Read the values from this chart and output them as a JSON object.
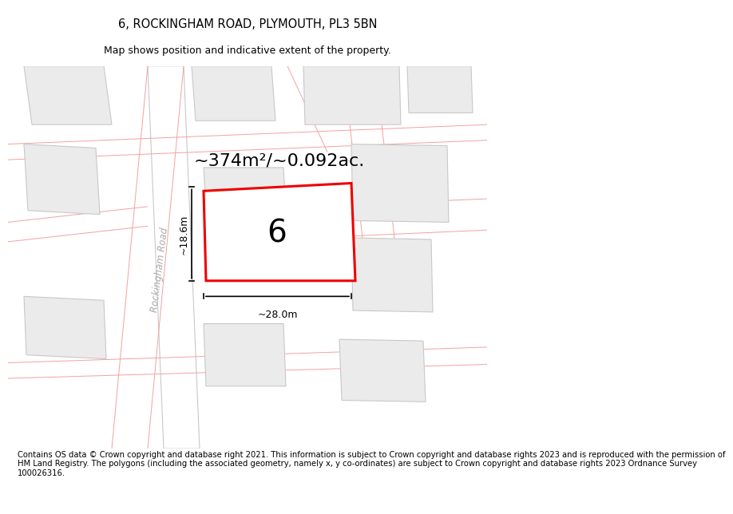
{
  "title": "6, ROCKINGHAM ROAD, PLYMOUTH, PL3 5BN",
  "subtitle": "Map shows position and indicative extent of the property.",
  "footer": "Contains OS data © Crown copyright and database right 2021. This information is subject to Crown copyright and database rights 2023 and is reproduced with the permission of\nHM Land Registry. The polygons (including the associated geometry, namely x, y co-ordinates) are subject to Crown copyright and database rights 2023 Ordnance Survey\n100026316.",
  "bg_color": "#ffffff",
  "map_bg": "#ffffff",
  "building_color": "#ebebeb",
  "building_edge": "#c8c8c8",
  "road_line_color": "#f5a0a0",
  "road_boundary_color": "#c8c8c8",
  "highlight_color": "#ee0000",
  "area_text": "~374m²/~0.092ac.",
  "number_text": "6",
  "width_label": "~28.0m",
  "height_label": "~18.6m",
  "road_label": "Rockingham Road",
  "title_fontsize": 10.5,
  "subtitle_fontsize": 9,
  "footer_fontsize": 7.2
}
